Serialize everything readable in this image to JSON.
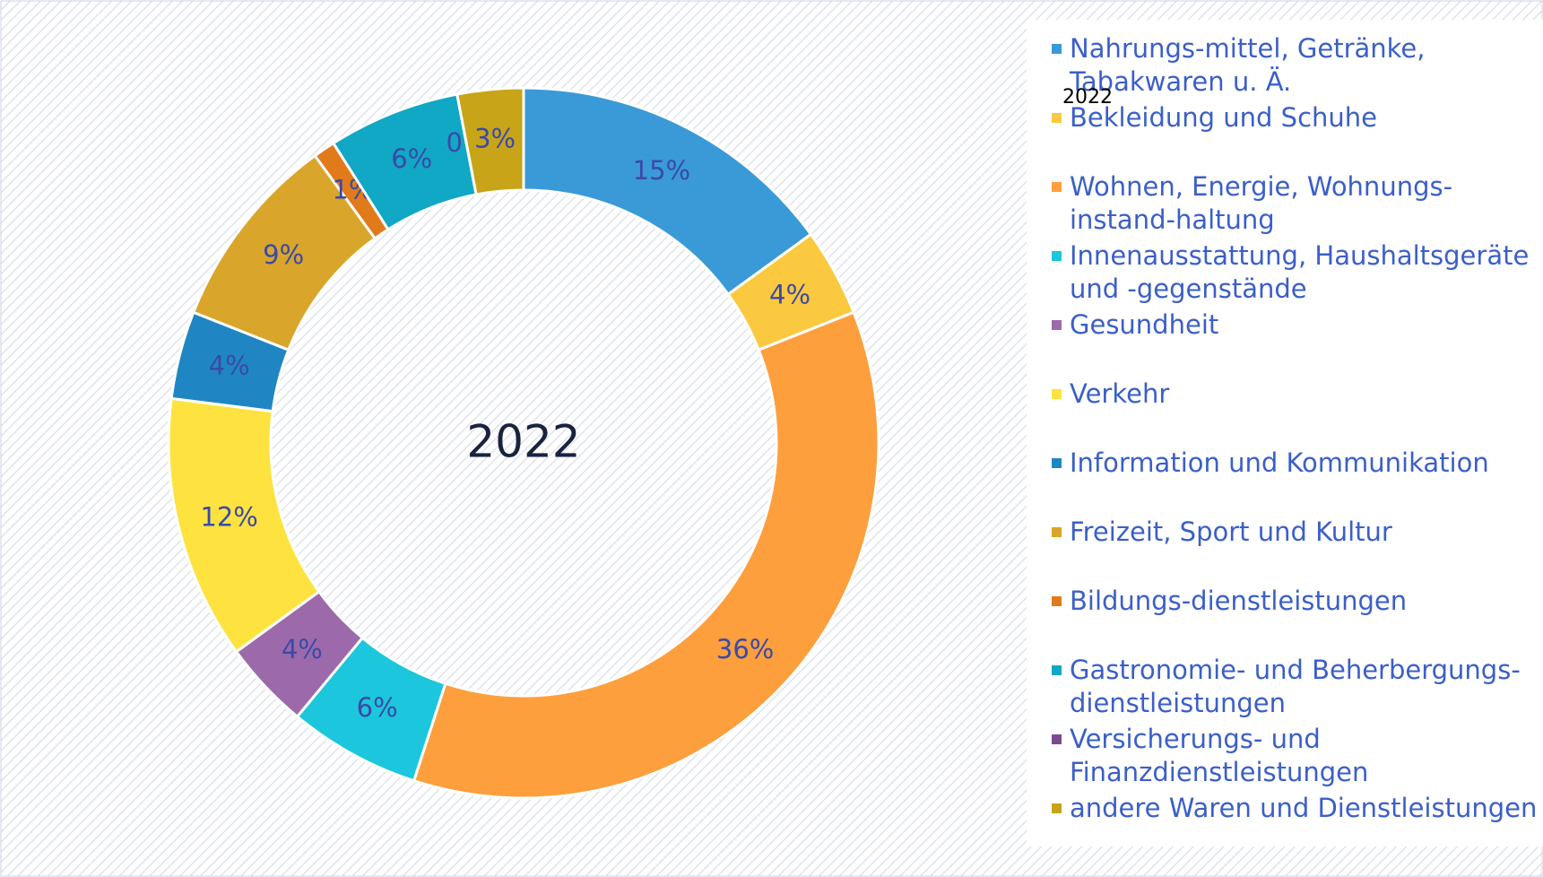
{
  "chart_data": {
    "type": "donut",
    "center_label": "2022",
    "series_label": "2022",
    "categories": [
      "Nahrungs-mittel, Getränke, Tabakwaren u. Ä.",
      "Bekleidung und Schuhe",
      "Wohnen, Energie, Wohnungs-instand-haltung",
      "Innenausstattung, Haushaltsgeräte und -gegenstände",
      "Gesundheit",
      "Verkehr",
      "Information und Kommunikation",
      "Freizeit, Sport und Kultur",
      "Bildungs-dienstleistungen",
      "Gastronomie- und Beherbergungs-dienstleistungen",
      "Versicherungs- und Finanzdienstleistungen",
      "andere Waren und Dienstleistungen"
    ],
    "values": [
      15,
      4,
      36,
      6,
      4,
      12,
      4,
      9,
      1,
      6,
      0,
      3
    ],
    "value_labels": [
      "15%",
      "4%",
      "36%",
      "6%",
      "4%",
      "12%",
      "4%",
      "9%",
      "1%",
      "6%",
      "0%",
      "3%"
    ],
    "colors": [
      "#3a9ad8",
      "#fbc93f",
      "#fe9f3d",
      "#1cc6dc",
      "#9c6aaa",
      "#fee340",
      "#1f86c3",
      "#d9a52a",
      "#e07a1a",
      "#10a8c4",
      "#7a4a8f",
      "#c8a418"
    ],
    "legend": "right"
  }
}
